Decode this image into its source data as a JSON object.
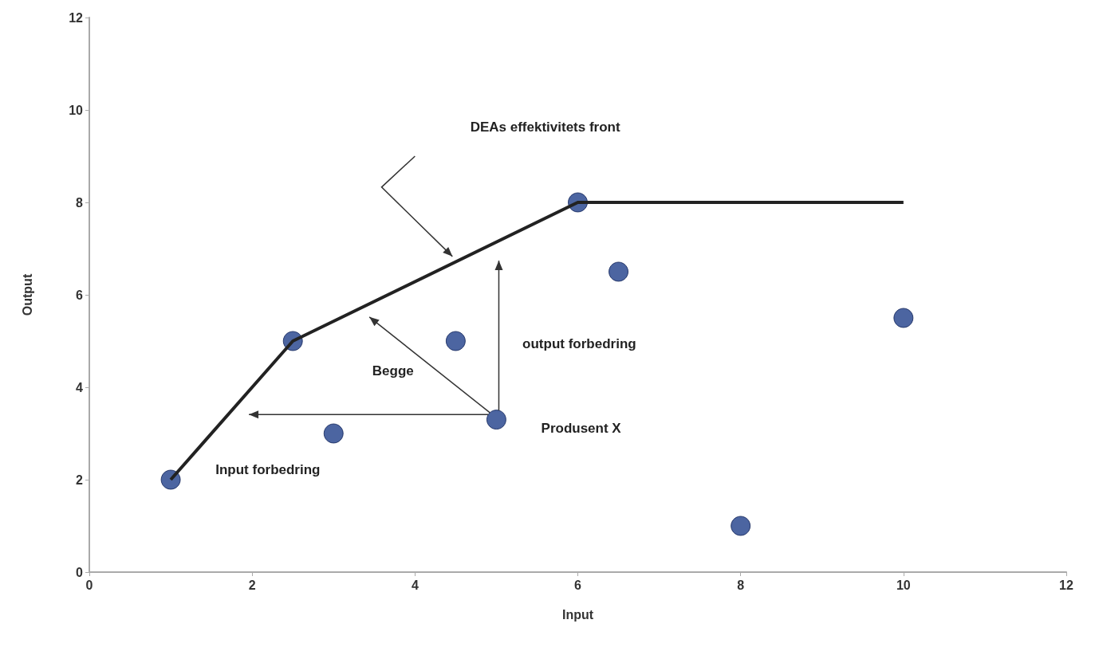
{
  "chart_data": {
    "type": "scatter",
    "xlabel": "Input",
    "ylabel": "Output",
    "xlim": [
      0,
      12
    ],
    "xticks": [
      0,
      2,
      4,
      6,
      8,
      10,
      12
    ],
    "ylim": [
      0,
      12
    ],
    "yticks": [
      0,
      2,
      4,
      6,
      8,
      10,
      12
    ],
    "grid": false,
    "marker": "circle",
    "series": [
      {
        "type": "line",
        "color": "#222222",
        "marker": "none",
        "x": [
          1,
          2.5,
          6,
          10
        ],
        "values": [
          2,
          5,
          8,
          8
        ]
      },
      {
        "color": "#1f3f8a",
        "x": [
          1,
          2.5,
          3,
          4.5,
          5,
          6,
          6.5,
          8,
          10
        ],
        "values": [
          2,
          5,
          3,
          5,
          3.3,
          8,
          6.5,
          1,
          5.5
        ]
      }
    ],
    "annotations": [
      "DEAs  effektivitets front",
      "output forbedring",
      "Begge",
      "Produsent X",
      "Input forbedring"
    ]
  }
}
